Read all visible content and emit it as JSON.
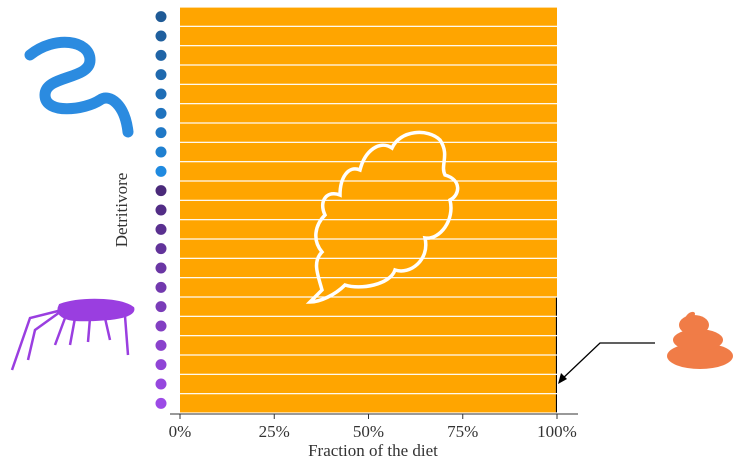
{
  "chart_data": {
    "type": "stacked_barh",
    "x_label": "Fraction of the diet",
    "y_label": "Detritivore",
    "categories": [
      null,
      null,
      null,
      null,
      null,
      null,
      null,
      null,
      null,
      null,
      null,
      null,
      null,
      null,
      null,
      null,
      null,
      null,
      null,
      null,
      null
    ],
    "point_colors": [
      "#1f5a96",
      "#1f5f9e",
      "#1f64a6",
      "#1f69ae",
      "#1f6eb6",
      "#1f73be",
      "#1f78c6",
      "#1f80d0",
      "#1f8ae0",
      "#4a2a7a",
      "#522d86",
      "#5a3090",
      "#62339a",
      "#6a36a4",
      "#7239ae",
      "#7a3cb8",
      "#823fc2",
      "#8a42cc",
      "#9045d6",
      "#9648de",
      "#9c4be6"
    ],
    "series": [
      {
        "color": "#ffa500",
        "values": [
          100,
          100,
          100,
          100,
          100,
          100,
          100,
          100,
          100,
          100,
          100,
          100,
          100,
          100,
          100,
          99.7,
          99.7,
          99.7,
          99.7,
          99.7,
          99.7
        ]
      },
      {
        "color": "#000000",
        "values": [
          0,
          0,
          0,
          0,
          0,
          0,
          0,
          0,
          0,
          0,
          0,
          0,
          0,
          0,
          0,
          0.3,
          0.3,
          0.3,
          0.3,
          0.3,
          0.3
        ]
      }
    ],
    "xlim": [
      0,
      100
    ],
    "xticks": [
      {
        "value": 0,
        "label": "0%"
      },
      {
        "value": 25,
        "label": "25%"
      },
      {
        "value": 50,
        "label": "50%"
      },
      {
        "value": 75,
        "label": "75%"
      },
      {
        "value": 100,
        "label": "100%"
      }
    ]
  }
}
